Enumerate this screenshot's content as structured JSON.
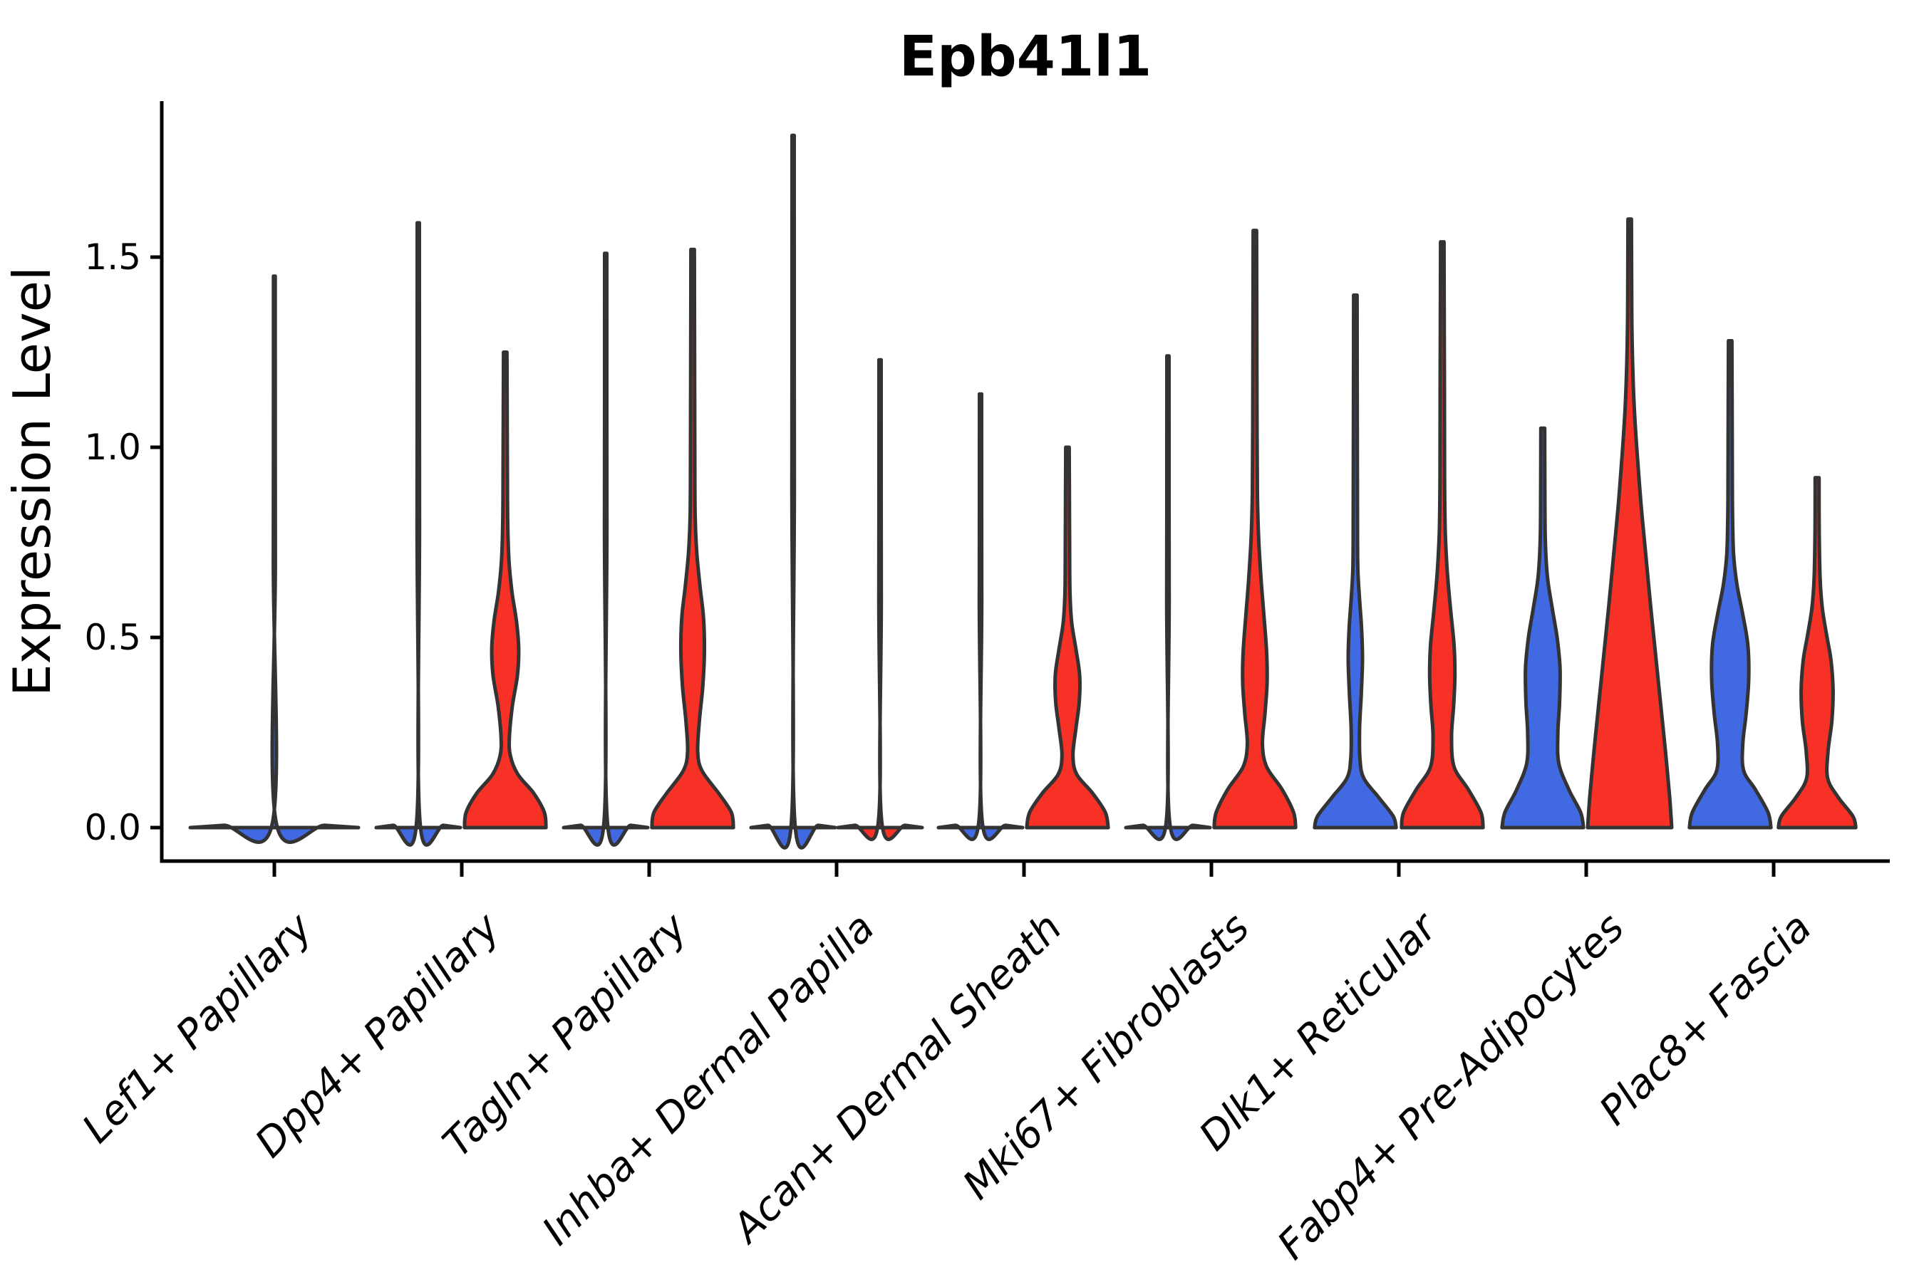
{
  "title": "Epb41l1",
  "y_axis": {
    "label": "Expression Level",
    "tick_labels": [
      "0.0",
      "0.5",
      "1.0",
      "1.5"
    ],
    "tick_values": [
      0,
      0.5,
      1.0,
      1.5
    ]
  },
  "colors": {
    "red": "#f83126",
    "blue": "#4169e1",
    "outline": "#333333",
    "axis": "#000000",
    "background": "#ffffff"
  },
  "chart_data": {
    "type": "violin",
    "title": "Epb41l1",
    "ylabel": "Expression Level",
    "ylim": [
      -0.09,
      1.91
    ],
    "yticks": [
      0,
      0.5,
      1.0,
      1.5
    ],
    "grid": false,
    "legend": "none",
    "x_tick_rotation_deg": 45,
    "categories": [
      "Lef1+ Papillary",
      "Dpp4+ Papillary",
      "Tagln+ Papillary",
      "Inhba+ Dermal Papilla",
      "Acan+ Dermal Sheath",
      "Mki67+ Fibroblasts",
      "Dlk1+ Reticular",
      "Fabp4+ Pre-Adipocytes",
      "Plac8+ Fascia"
    ],
    "violins": [
      {
        "category": "Lef1+ Papillary",
        "side": "center",
        "span": "full",
        "color": "blue",
        "shape": "flat-with-spike",
        "max_expression": 1.45,
        "profile": [
          [
            0,
            1.0
          ],
          [
            0.006,
            0.6
          ],
          [
            0.015,
            0.02
          ],
          [
            0.7,
            0.012
          ],
          [
            1.45,
            0.01
          ]
        ]
      },
      {
        "category": "Dpp4+ Papillary",
        "side": "left",
        "span": "half",
        "color": "blue",
        "shape": "flat-with-spike",
        "max_expression": 1.59,
        "profile": [
          [
            0,
            1.0
          ],
          [
            0.006,
            0.6
          ],
          [
            0.015,
            0.04
          ],
          [
            0.8,
            0.028
          ],
          [
            1.59,
            0.025
          ]
        ]
      },
      {
        "category": "Dpp4+ Papillary",
        "side": "right",
        "span": "half",
        "color": "red",
        "shape": "bimodal",
        "max_expression": 1.25,
        "profile": [
          [
            0,
            0.97
          ],
          [
            0.04,
            0.93
          ],
          [
            0.09,
            0.68
          ],
          [
            0.14,
            0.3
          ],
          [
            0.19,
            0.12
          ],
          [
            0.24,
            0.1
          ],
          [
            0.32,
            0.17
          ],
          [
            0.4,
            0.29
          ],
          [
            0.47,
            0.32
          ],
          [
            0.54,
            0.27
          ],
          [
            0.62,
            0.16
          ],
          [
            0.7,
            0.09
          ],
          [
            0.8,
            0.06
          ],
          [
            0.95,
            0.05
          ],
          [
            1.1,
            0.045
          ],
          [
            1.25,
            0.04
          ]
        ]
      },
      {
        "category": "Tagln+ Papillary",
        "side": "left",
        "span": "half",
        "color": "blue",
        "shape": "flat-with-spike",
        "max_expression": 1.51,
        "profile": [
          [
            0,
            1.0
          ],
          [
            0.006,
            0.6
          ],
          [
            0.015,
            0.04
          ],
          [
            0.8,
            0.028
          ],
          [
            1.51,
            0.025
          ]
        ]
      },
      {
        "category": "Tagln+ Papillary",
        "side": "right",
        "span": "half",
        "color": "red",
        "shape": "bimodal",
        "max_expression": 1.52,
        "profile": [
          [
            0,
            0.97
          ],
          [
            0.04,
            0.92
          ],
          [
            0.09,
            0.62
          ],
          [
            0.15,
            0.22
          ],
          [
            0.2,
            0.12
          ],
          [
            0.28,
            0.16
          ],
          [
            0.37,
            0.24
          ],
          [
            0.46,
            0.28
          ],
          [
            0.55,
            0.26
          ],
          [
            0.63,
            0.18
          ],
          [
            0.72,
            0.1
          ],
          [
            0.82,
            0.06
          ],
          [
            1.0,
            0.05
          ],
          [
            1.25,
            0.045
          ],
          [
            1.52,
            0.04
          ]
        ]
      },
      {
        "category": "Inhba+ Dermal Papilla",
        "side": "left",
        "span": "half",
        "color": "blue",
        "shape": "flat-with-spike",
        "max_expression": 1.82,
        "profile": [
          [
            0,
            1.0
          ],
          [
            0.006,
            0.6
          ],
          [
            0.015,
            0.04
          ],
          [
            0.9,
            0.028
          ],
          [
            1.82,
            0.025
          ]
        ]
      },
      {
        "category": "Inhba+ Dermal Papilla",
        "side": "right",
        "span": "half",
        "color": "red",
        "shape": "flat-with-spike",
        "max_expression": 1.23,
        "profile": [
          [
            0,
            1.0
          ],
          [
            0.006,
            0.6
          ],
          [
            0.015,
            0.04
          ],
          [
            0.6,
            0.028
          ],
          [
            1.23,
            0.025
          ]
        ]
      },
      {
        "category": "Acan+ Dermal Sheath",
        "side": "left",
        "span": "half",
        "color": "blue",
        "shape": "flat-with-spike",
        "max_expression": 1.14,
        "profile": [
          [
            0,
            1.0
          ],
          [
            0.006,
            0.6
          ],
          [
            0.015,
            0.04
          ],
          [
            0.6,
            0.028
          ],
          [
            1.14,
            0.025
          ]
        ]
      },
      {
        "category": "Acan+ Dermal Sheath",
        "side": "right",
        "span": "half",
        "color": "red",
        "shape": "bimodal",
        "max_expression": 1.0,
        "profile": [
          [
            0,
            0.97
          ],
          [
            0.04,
            0.9
          ],
          [
            0.09,
            0.6
          ],
          [
            0.14,
            0.22
          ],
          [
            0.19,
            0.13
          ],
          [
            0.26,
            0.2
          ],
          [
            0.33,
            0.28
          ],
          [
            0.4,
            0.29
          ],
          [
            0.47,
            0.2
          ],
          [
            0.54,
            0.1
          ],
          [
            0.62,
            0.06
          ],
          [
            0.75,
            0.05
          ],
          [
            0.88,
            0.045
          ],
          [
            1.0,
            0.04
          ]
        ]
      },
      {
        "category": "Mki67+ Fibroblasts",
        "side": "left",
        "span": "half",
        "color": "blue",
        "shape": "flat-with-spike",
        "max_expression": 1.24,
        "profile": [
          [
            0,
            1.0
          ],
          [
            0.006,
            0.6
          ],
          [
            0.015,
            0.04
          ],
          [
            0.6,
            0.028
          ],
          [
            1.24,
            0.025
          ]
        ]
      },
      {
        "category": "Mki67+ Fibroblasts",
        "side": "right",
        "span": "half",
        "color": "red",
        "shape": "bimodal",
        "max_expression": 1.57,
        "profile": [
          [
            0,
            0.97
          ],
          [
            0.04,
            0.92
          ],
          [
            0.1,
            0.65
          ],
          [
            0.16,
            0.28
          ],
          [
            0.22,
            0.18
          ],
          [
            0.3,
            0.24
          ],
          [
            0.38,
            0.29
          ],
          [
            0.46,
            0.28
          ],
          [
            0.55,
            0.22
          ],
          [
            0.65,
            0.15
          ],
          [
            0.76,
            0.09
          ],
          [
            0.88,
            0.06
          ],
          [
            1.05,
            0.05
          ],
          [
            1.3,
            0.045
          ],
          [
            1.57,
            0.04
          ]
        ]
      },
      {
        "category": "Dlk1+ Reticular",
        "side": "left",
        "span": "half",
        "color": "blue",
        "shape": "bimodal",
        "max_expression": 1.4,
        "profile": [
          [
            0,
            0.97
          ],
          [
            0.03,
            0.9
          ],
          [
            0.08,
            0.55
          ],
          [
            0.13,
            0.2
          ],
          [
            0.18,
            0.11
          ],
          [
            0.26,
            0.1
          ],
          [
            0.35,
            0.14
          ],
          [
            0.44,
            0.17
          ],
          [
            0.52,
            0.15
          ],
          [
            0.6,
            0.1
          ],
          [
            0.68,
            0.06
          ],
          [
            0.8,
            0.05
          ],
          [
            1.05,
            0.045
          ],
          [
            1.4,
            0.04
          ]
        ]
      },
      {
        "category": "Dlk1+ Reticular",
        "side": "right",
        "span": "half",
        "color": "red",
        "shape": "bimodal",
        "max_expression": 1.54,
        "profile": [
          [
            0,
            0.97
          ],
          [
            0.04,
            0.92
          ],
          [
            0.1,
            0.62
          ],
          [
            0.16,
            0.28
          ],
          [
            0.24,
            0.22
          ],
          [
            0.32,
            0.27
          ],
          [
            0.4,
            0.3
          ],
          [
            0.48,
            0.28
          ],
          [
            0.57,
            0.2
          ],
          [
            0.67,
            0.12
          ],
          [
            0.78,
            0.07
          ],
          [
            0.92,
            0.055
          ],
          [
            1.15,
            0.05
          ],
          [
            1.54,
            0.04
          ]
        ]
      },
      {
        "category": "Fabp4+ Pre-Adipocytes",
        "side": "left",
        "span": "half",
        "color": "blue",
        "shape": "bimodal",
        "max_expression": 1.05,
        "profile": [
          [
            0,
            0.97
          ],
          [
            0.04,
            0.9
          ],
          [
            0.1,
            0.62
          ],
          [
            0.17,
            0.38
          ],
          [
            0.25,
            0.36
          ],
          [
            0.33,
            0.4
          ],
          [
            0.42,
            0.41
          ],
          [
            0.5,
            0.34
          ],
          [
            0.58,
            0.22
          ],
          [
            0.66,
            0.11
          ],
          [
            0.76,
            0.06
          ],
          [
            0.9,
            0.05
          ],
          [
            1.05,
            0.045
          ]
        ]
      },
      {
        "category": "Fabp4+ Pre-Adipocytes",
        "side": "right",
        "span": "half",
        "color": "red",
        "shape": "broad-cone",
        "max_expression": 1.6,
        "profile": [
          [
            0,
            1.0
          ],
          [
            0.08,
            0.95
          ],
          [
            0.2,
            0.85
          ],
          [
            0.32,
            0.74
          ],
          [
            0.45,
            0.62
          ],
          [
            0.58,
            0.5
          ],
          [
            0.72,
            0.38
          ],
          [
            0.85,
            0.27
          ],
          [
            0.98,
            0.18
          ],
          [
            1.1,
            0.11
          ],
          [
            1.22,
            0.07
          ],
          [
            1.35,
            0.05
          ],
          [
            1.6,
            0.04
          ]
        ]
      },
      {
        "category": "Plac8+ Fascia",
        "side": "left",
        "span": "half",
        "color": "blue",
        "shape": "bimodal",
        "max_expression": 1.28,
        "profile": [
          [
            0,
            0.97
          ],
          [
            0.04,
            0.9
          ],
          [
            0.1,
            0.6
          ],
          [
            0.15,
            0.32
          ],
          [
            0.22,
            0.3
          ],
          [
            0.3,
            0.38
          ],
          [
            0.39,
            0.44
          ],
          [
            0.48,
            0.42
          ],
          [
            0.56,
            0.3
          ],
          [
            0.64,
            0.16
          ],
          [
            0.72,
            0.08
          ],
          [
            0.84,
            0.055
          ],
          [
            1.0,
            0.05
          ],
          [
            1.28,
            0.04
          ]
        ]
      },
      {
        "category": "Plac8+ Fascia",
        "side": "right",
        "span": "half",
        "color": "red",
        "shape": "bimodal",
        "max_expression": 0.92,
        "profile": [
          [
            0,
            0.92
          ],
          [
            0.03,
            0.85
          ],
          [
            0.08,
            0.5
          ],
          [
            0.13,
            0.25
          ],
          [
            0.2,
            0.26
          ],
          [
            0.28,
            0.35
          ],
          [
            0.36,
            0.38
          ],
          [
            0.44,
            0.33
          ],
          [
            0.51,
            0.22
          ],
          [
            0.58,
            0.12
          ],
          [
            0.66,
            0.07
          ],
          [
            0.78,
            0.05
          ],
          [
            0.92,
            0.045
          ]
        ]
      }
    ]
  }
}
